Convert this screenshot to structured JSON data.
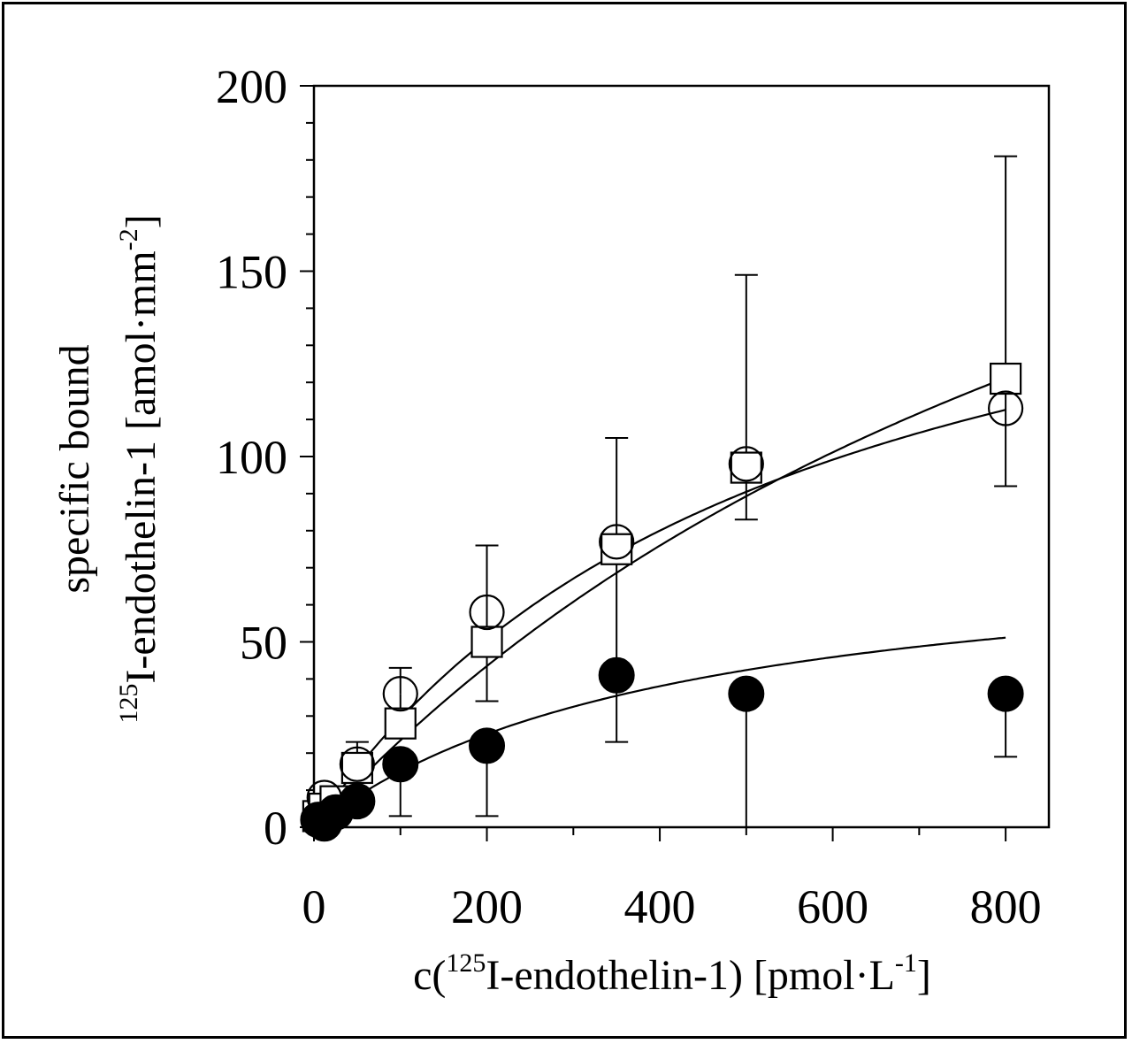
{
  "chart_data": {
    "type": "scatter",
    "xlabel": {
      "prefix": "c(",
      "sup": "125",
      "main": "I-endothelin-1) [pmol·L",
      "unit_sup": "-1",
      "suffix": "]"
    },
    "ylabel": {
      "line1": "specific bound",
      "sup": "125",
      "main": "I-endothelin-1 [amol·mm",
      "unit_sup": "-2",
      "suffix": "]"
    },
    "xlim": [
      0,
      850
    ],
    "ylim": [
      0,
      200
    ],
    "xticks": [
      0,
      200,
      400,
      600,
      800
    ],
    "yticks": [
      0,
      50,
      100,
      150,
      200
    ],
    "grid": false,
    "legend": "none",
    "series": [
      {
        "marker": "open-circle",
        "points": [
          {
            "x": 12,
            "y": 8
          },
          {
            "x": 50,
            "y": 17
          },
          {
            "x": 100,
            "y": 36,
            "err_lo": 29,
            "err_hi": 43
          },
          {
            "x": 200,
            "y": 58,
            "err_lo": 34,
            "err_hi": 76
          },
          {
            "x": 350,
            "y": 77,
            "err_lo": 23,
            "err_hi": 105
          },
          {
            "x": 500,
            "y": 98,
            "err_lo": 83,
            "err_hi": 149
          },
          {
            "x": 800,
            "y": 113,
            "err_lo": 92,
            "err_hi": 181
          }
        ],
        "fit": {
          "bmax": 190,
          "kd": 550
        }
      },
      {
        "marker": "open-square",
        "points": [
          {
            "x": 5,
            "y": 3
          },
          {
            "x": 12,
            "y": 5
          },
          {
            "x": 25,
            "y": 7
          },
          {
            "x": 50,
            "y": 16,
            "err_lo": 8,
            "err_hi": 23
          },
          {
            "x": 100,
            "y": 28
          },
          {
            "x": 200,
            "y": 50
          },
          {
            "x": 350,
            "y": 75
          },
          {
            "x": 500,
            "y": 97
          },
          {
            "x": 800,
            "y": 121
          }
        ],
        "fit": {
          "bmax": 300,
          "kd": 1180
        }
      },
      {
        "marker": "filled-circle",
        "points": [
          {
            "x": 5,
            "y": 2
          },
          {
            "x": 12,
            "y": 1
          },
          {
            "x": 25,
            "y": 4
          },
          {
            "x": 50,
            "y": 7
          },
          {
            "x": 100,
            "y": 17,
            "err_lo": 3
          },
          {
            "x": 200,
            "y": 22,
            "err_lo": 3
          },
          {
            "x": 350,
            "y": 41
          },
          {
            "x": 500,
            "y": 36,
            "err_lo": 0
          },
          {
            "x": 800,
            "y": 36,
            "err_lo": 19
          }
        ],
        "fit": {
          "bmax": 78,
          "kd": 420
        }
      }
    ]
  }
}
